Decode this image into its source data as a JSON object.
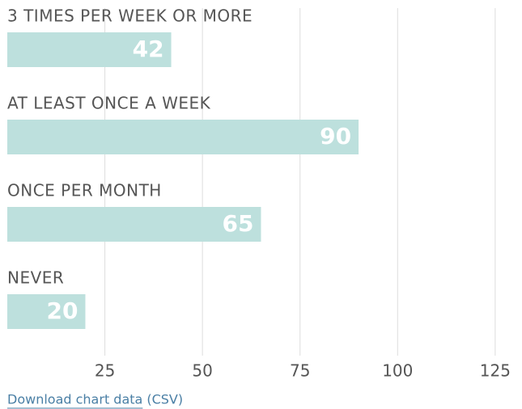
{
  "chart_data": {
    "type": "bar",
    "orientation": "horizontal",
    "categories": [
      "3 TIMES PER WEEK OR MORE",
      "AT LEAST ONCE A WEEK",
      "ONCE PER MONTH",
      "NEVER"
    ],
    "values": [
      42,
      90,
      65,
      20
    ],
    "color": "#bde0dd",
    "xlim": [
      0,
      130
    ],
    "xticks": [
      25,
      50,
      75,
      100,
      125
    ],
    "grid": true
  },
  "footer": {
    "link": "Download chart data",
    "format": "(CSV)"
  }
}
